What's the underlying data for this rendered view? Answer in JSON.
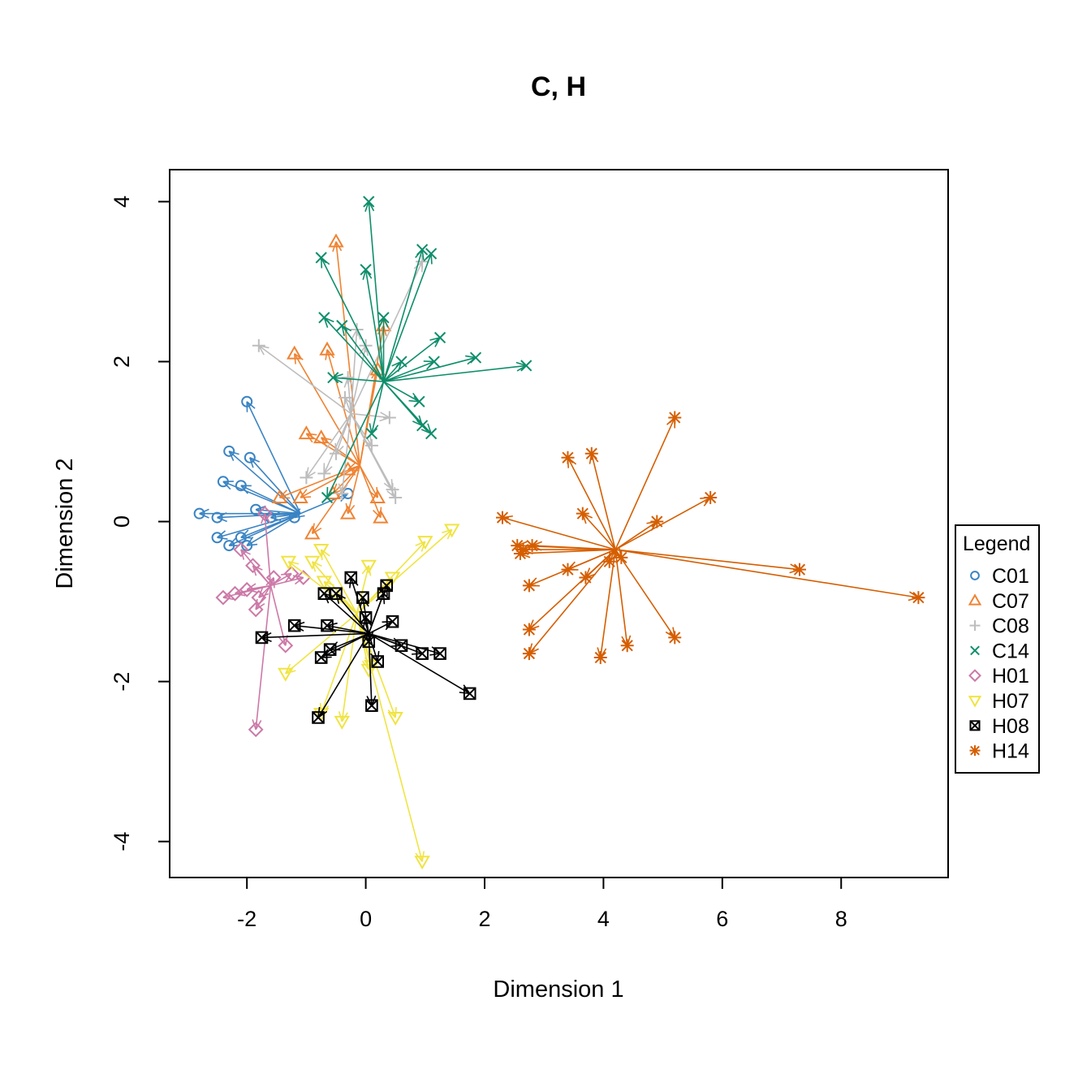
{
  "chart_data": {
    "type": "scatter",
    "title": "C, H",
    "xlabel": "Dimension 1",
    "ylabel": "Dimension 2",
    "xlim": [
      -3.3,
      9.8
    ],
    "ylim": [
      -4.45,
      4.4
    ],
    "xticks": [
      -2,
      0,
      2,
      4,
      6,
      8
    ],
    "yticks": [
      -4,
      -2,
      0,
      2,
      4
    ],
    "legend": {
      "title": "Legend",
      "position": "right"
    },
    "series": [
      {
        "name": "C01",
        "color": "#3a84c3",
        "marker": "circle",
        "center": [
          -1.1,
          0.1
        ],
        "points": [
          [
            -2.0,
            1.5
          ],
          [
            -2.3,
            0.88
          ],
          [
            -1.95,
            0.8
          ],
          [
            -2.1,
            0.45
          ],
          [
            -2.4,
            0.5
          ],
          [
            -2.8,
            0.1
          ],
          [
            -2.5,
            0.05
          ],
          [
            -2.5,
            -0.2
          ],
          [
            -2.3,
            -0.3
          ],
          [
            -2.1,
            -0.2
          ],
          [
            -1.85,
            0.15
          ],
          [
            -1.6,
            0.05
          ],
          [
            -1.2,
            0.05
          ],
          [
            -0.3,
            0.35
          ],
          [
            -2.0,
            -0.3
          ]
        ]
      },
      {
        "name": "C07",
        "color": "#ef8333",
        "marker": "triangle",
        "center": [
          -0.1,
          0.7
        ],
        "points": [
          [
            -0.5,
            3.5
          ],
          [
            -1.2,
            2.1
          ],
          [
            -0.65,
            2.15
          ],
          [
            0.3,
            2.45
          ],
          [
            0.2,
            1.9
          ],
          [
            -1.0,
            1.1
          ],
          [
            -0.75,
            1.05
          ],
          [
            -0.3,
            0.65
          ],
          [
            -0.3,
            0.1
          ],
          [
            0.2,
            0.3
          ],
          [
            0.25,
            0.05
          ],
          [
            -1.45,
            0.3
          ],
          [
            -1.1,
            0.3
          ],
          [
            -0.55,
            0.35
          ],
          [
            -0.9,
            -0.15
          ]
        ]
      },
      {
        "name": "C08",
        "color": "#bdbdbd",
        "marker": "plus",
        "center": [
          -0.25,
          1.35
        ],
        "points": [
          [
            -1.8,
            2.2
          ],
          [
            0.95,
            3.25
          ],
          [
            -0.15,
            2.4
          ],
          [
            0.0,
            2.2
          ],
          [
            -0.3,
            1.8
          ],
          [
            0.4,
            1.3
          ],
          [
            -0.35,
            1.55
          ],
          [
            -0.7,
            0.6
          ],
          [
            -1.0,
            0.55
          ],
          [
            -0.4,
            0.35
          ],
          [
            0.5,
            0.3
          ],
          [
            0.45,
            0.4
          ],
          [
            -0.5,
            0.85
          ],
          [
            0.1,
            0.95
          ]
        ]
      },
      {
        "name": "C14",
        "color": "#0e8e6b",
        "marker": "x",
        "center": [
          0.3,
          1.75
        ],
        "points": [
          [
            0.05,
            4.0
          ],
          [
            0.0,
            3.15
          ],
          [
            -0.75,
            3.3
          ],
          [
            0.95,
            3.4
          ],
          [
            1.1,
            3.35
          ],
          [
            0.3,
            2.55
          ],
          [
            -0.7,
            2.55
          ],
          [
            1.25,
            2.3
          ],
          [
            1.85,
            2.05
          ],
          [
            2.7,
            1.95
          ],
          [
            0.6,
            2.0
          ],
          [
            1.15,
            2.0
          ],
          [
            -0.55,
            1.8
          ],
          [
            0.9,
            1.5
          ],
          [
            0.95,
            1.2
          ],
          [
            1.1,
            1.1
          ],
          [
            0.1,
            1.1
          ],
          [
            -0.65,
            0.3
          ],
          [
            -0.4,
            2.45
          ]
        ]
      },
      {
        "name": "H01",
        "color": "#cc79a7",
        "marker": "diamond",
        "center": [
          -1.6,
          -0.8
        ],
        "points": [
          [
            -2.4,
            -0.95
          ],
          [
            -2.2,
            -0.9
          ],
          [
            -2.0,
            -0.85
          ],
          [
            -1.8,
            -0.95
          ],
          [
            -1.85,
            -1.1
          ],
          [
            -1.85,
            -2.6
          ],
          [
            -1.35,
            -1.55
          ],
          [
            -1.05,
            -0.7
          ],
          [
            -1.25,
            -0.65
          ],
          [
            -1.55,
            -0.7
          ],
          [
            -1.9,
            -0.55
          ],
          [
            -1.7,
            0.1
          ],
          [
            -2.1,
            -0.35
          ]
        ]
      },
      {
        "name": "H07",
        "color": "#f0e442",
        "marker": "triangle-down",
        "center": [
          -0.15,
          -1.15
        ],
        "points": [
          [
            0.95,
            -4.25
          ],
          [
            -0.4,
            -2.5
          ],
          [
            0.5,
            -2.45
          ],
          [
            -0.75,
            -2.4
          ],
          [
            -1.35,
            -1.9
          ],
          [
            0.05,
            -1.85
          ],
          [
            0.1,
            -1.8
          ],
          [
            0.05,
            -0.55
          ],
          [
            0.45,
            -0.7
          ],
          [
            1.0,
            -0.25
          ],
          [
            1.45,
            -0.1
          ],
          [
            -0.75,
            -0.35
          ],
          [
            -0.9,
            -0.5
          ],
          [
            -1.3,
            -0.5
          ],
          [
            -0.7,
            -0.75
          ]
        ]
      },
      {
        "name": "H08",
        "color": "#000000",
        "marker": "box-x",
        "center": [
          0.05,
          -1.4
        ],
        "points": [
          [
            1.75,
            -2.15
          ],
          [
            0.1,
            -2.3
          ],
          [
            -0.8,
            -2.45
          ],
          [
            -0.75,
            -1.7
          ],
          [
            -0.6,
            -1.6
          ],
          [
            -0.25,
            -0.7
          ],
          [
            -0.5,
            -0.9
          ],
          [
            -0.7,
            -0.9
          ],
          [
            0.35,
            -0.8
          ],
          [
            0.3,
            -0.9
          ],
          [
            0.45,
            -1.25
          ],
          [
            0.6,
            -1.55
          ],
          [
            0.95,
            -1.65
          ],
          [
            1.25,
            -1.65
          ],
          [
            0.2,
            -1.75
          ],
          [
            -1.75,
            -1.45
          ],
          [
            -1.2,
            -1.3
          ],
          [
            -0.65,
            -1.3
          ],
          [
            0.05,
            -1.5
          ],
          [
            -0.05,
            -0.95
          ],
          [
            0.0,
            -1.2
          ]
        ]
      },
      {
        "name": "H14",
        "color": "#d55e00",
        "marker": "asterisk",
        "center": [
          4.2,
          -0.35
        ],
        "points": [
          [
            9.3,
            -0.95
          ],
          [
            7.3,
            -0.6
          ],
          [
            5.8,
            0.3
          ],
          [
            5.2,
            1.3
          ],
          [
            4.9,
            0.0
          ],
          [
            5.2,
            -1.45
          ],
          [
            4.4,
            -1.55
          ],
          [
            3.95,
            -1.7
          ],
          [
            3.8,
            0.85
          ],
          [
            3.4,
            0.8
          ],
          [
            3.65,
            0.1
          ],
          [
            3.7,
            -0.7
          ],
          [
            3.4,
            -0.6
          ],
          [
            2.75,
            -0.8
          ],
          [
            2.75,
            -1.35
          ],
          [
            2.75,
            -1.65
          ],
          [
            2.3,
            0.05
          ],
          [
            2.55,
            -0.3
          ],
          [
            2.6,
            -0.4
          ],
          [
            2.65,
            -0.35
          ],
          [
            2.8,
            -0.3
          ],
          [
            4.3,
            -0.45
          ],
          [
            4.1,
            -0.5
          ]
        ]
      }
    ]
  }
}
